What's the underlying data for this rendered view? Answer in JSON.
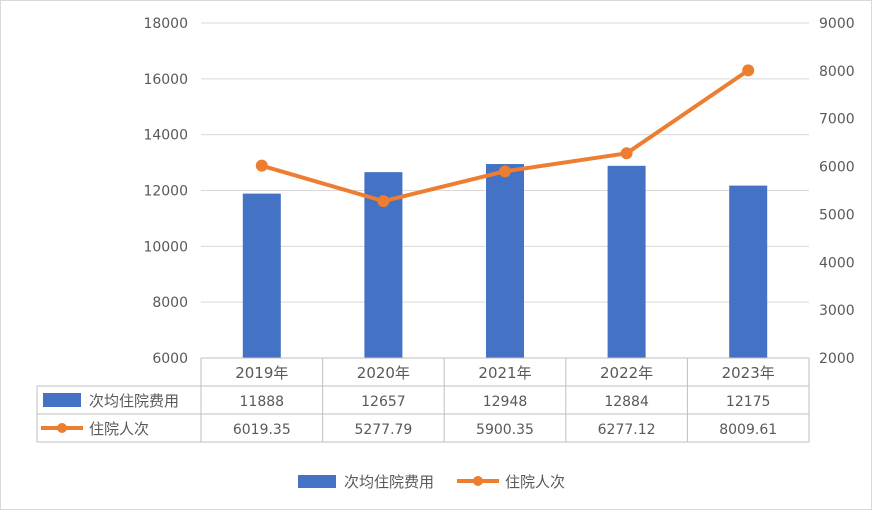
{
  "chart_data": {
    "type": "bar",
    "categories": [
      "2019年",
      "2020年",
      "2021年",
      "2022年",
      "2023年"
    ],
    "series": [
      {
        "name": "次均住院费用",
        "type": "bar",
        "axis": "left",
        "color": "#4472C4",
        "values": [
          11888,
          12657,
          12948,
          12884,
          12175
        ],
        "labels": [
          "11888",
          "12657",
          "12948",
          "12884",
          "12175"
        ]
      },
      {
        "name": "住院人次",
        "type": "line",
        "axis": "right",
        "color": "#ED7D31",
        "values": [
          6019.35,
          5277.79,
          5900.35,
          6277.12,
          8009.61
        ],
        "labels": [
          "6019.35",
          "5277.79",
          "5900.35",
          "6277.12",
          "8009.61"
        ]
      }
    ],
    "y_left": {
      "min": 6000,
      "max": 18000,
      "ticks": [
        "6000",
        "8000",
        "10000",
        "12000",
        "14000",
        "16000",
        "18000"
      ]
    },
    "y_right": {
      "min": 2000,
      "max": 9000,
      "ticks": [
        "2000",
        "3000",
        "4000",
        "5000",
        "6000",
        "7000",
        "8000",
        "9000"
      ]
    },
    "grid": true,
    "data_table": true,
    "legend_position": "bottom"
  }
}
